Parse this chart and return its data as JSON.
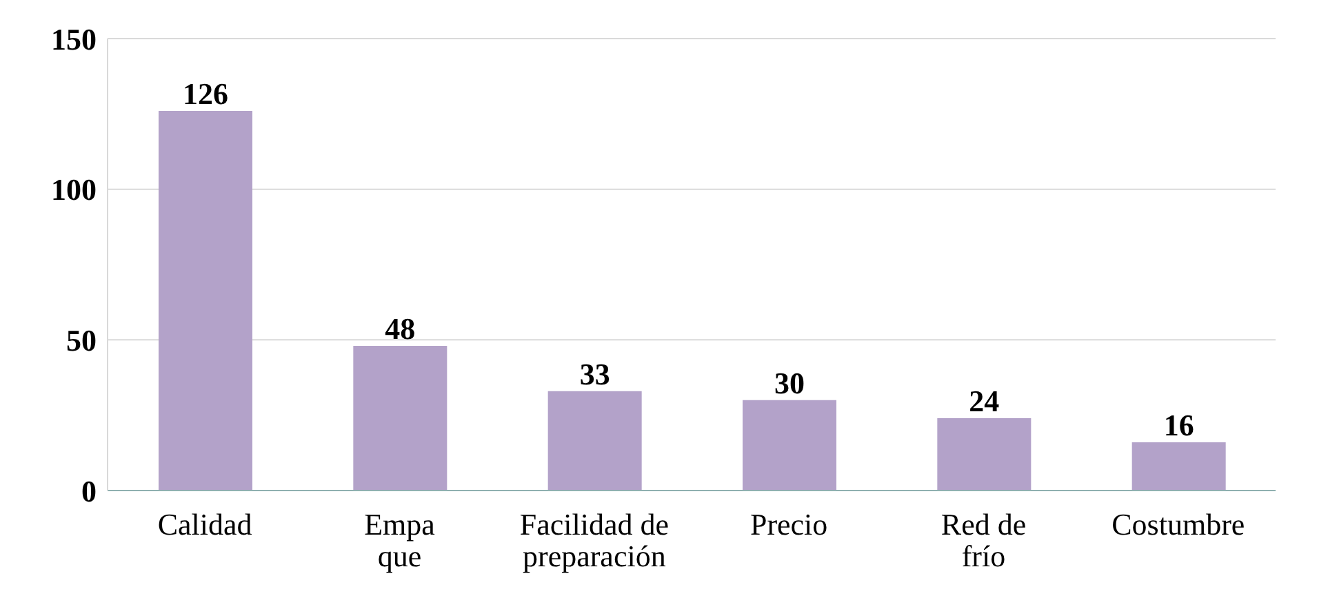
{
  "chart_data": {
    "type": "bar",
    "categories": [
      "Calidad",
      "Empa\nque",
      "Facilidad de\npreparación",
      "Precio",
      "Red de\nfrío",
      "Costumbre"
    ],
    "values": [
      126,
      48,
      33,
      30,
      24,
      16
    ],
    "color": "#b3a2c9",
    "ylim": [
      0,
      150
    ],
    "yticks": [
      0,
      50,
      100,
      150
    ],
    "grid": "y",
    "data_labels": true
  }
}
